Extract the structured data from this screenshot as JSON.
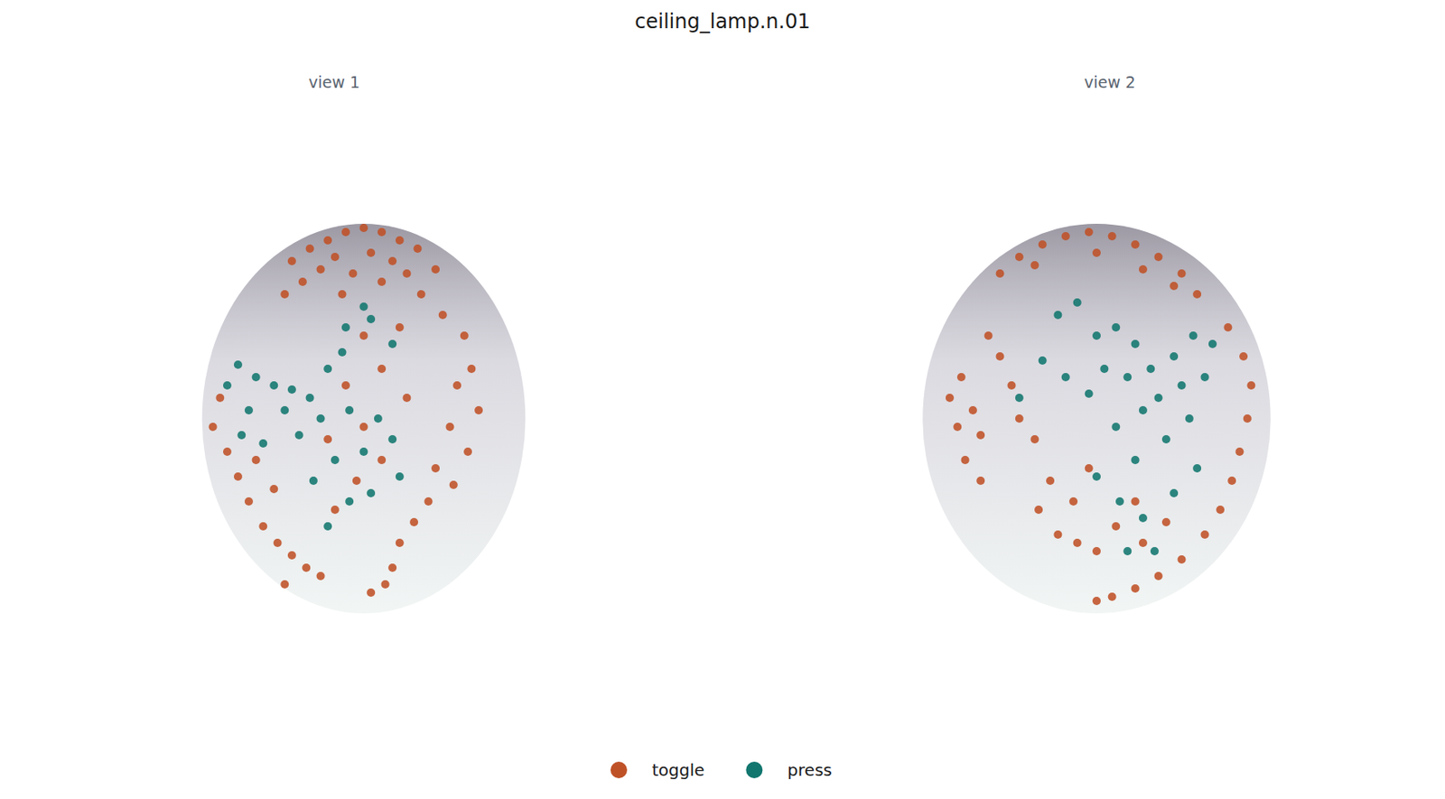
{
  "chart_data": {
    "type": "scatter",
    "title": "ceiling_lamp.n.01",
    "legend": "bottom",
    "tick_labels": false,
    "panels": [
      {
        "title": "view 1",
        "xlim": [
          0,
          100
        ],
        "ylim": [
          0,
          100
        ],
        "series": [
          {
            "name": "toggle",
            "color": "#bf5127",
            "marker": "circle",
            "x": [
              30,
              35,
              40,
              45,
              50,
              55,
              60,
              65,
              42,
              52,
              58,
              38,
              47,
              62,
              33,
              55,
              70,
              28,
              44,
              66,
              72,
              78,
              80,
              76,
              82,
              74,
              79,
              70,
              75,
              68,
              64,
              60,
              58,
              56,
              52,
              50,
              60,
              55,
              45,
              62,
              50,
              40,
              55,
              48,
              42,
              10,
              8,
              12,
              15,
              18,
              22,
              26,
              30,
              34,
              38,
              28,
              20,
              25
            ],
            "y": [
              88,
              91,
              93,
              95,
              96,
              95,
              93,
              91,
              89,
              90,
              88,
              86,
              85,
              85,
              83,
              83,
              86,
              80,
              80,
              80,
              75,
              70,
              62,
              58,
              52,
              48,
              42,
              38,
              34,
              30,
              25,
              20,
              14,
              10,
              8,
              70,
              72,
              62,
              58,
              55,
              48,
              45,
              40,
              35,
              28,
              55,
              48,
              42,
              36,
              30,
              24,
              20,
              17,
              14,
              12,
              10,
              40,
              33
            ]
          },
          {
            "name": "press",
            "color": "#11766e",
            "marker": "circle",
            "x": [
              15,
              20,
              25,
              30,
              12,
              18,
              28,
              35,
              40,
              45,
              50,
              52,
              44,
              58,
              38,
              46,
              54,
              32,
              42,
              50,
              58,
              36,
              46,
              52,
              40,
              16,
              22,
              60
            ],
            "y": [
              63,
              60,
              58,
              57,
              58,
              52,
              52,
              55,
              62,
              72,
              77,
              74,
              66,
              68,
              50,
              52,
              50,
              46,
              40,
              42,
              45,
              35,
              30,
              32,
              24,
              46,
              44,
              36
            ]
          }
        ]
      },
      {
        "title": "view 2",
        "xlim": [
          0,
          100
        ],
        "ylim": [
          0,
          100
        ],
        "series": [
          {
            "name": "toggle",
            "color": "#bf5127",
            "marker": "circle",
            "x": [
              25,
              30,
              36,
              42,
              48,
              54,
              60,
              66,
              72,
              76,
              34,
              50,
              62,
              70,
              84,
              88,
              90,
              89,
              87,
              85,
              82,
              78,
              72,
              66,
              60,
              54,
              50,
              15,
              12,
              18,
              20,
              14,
              25,
              22,
              28,
              16,
              20,
              30,
              34,
              35,
              40,
              45,
              50,
              55,
              62,
              68,
              44,
              38,
              60,
              48
            ],
            "y": [
              85,
              89,
              92,
              94,
              95,
              94,
              92,
              89,
              85,
              80,
              87,
              90,
              86,
              82,
              72,
              65,
              58,
              50,
              42,
              35,
              28,
              22,
              16,
              12,
              9,
              7,
              6,
              60,
              55,
              52,
              46,
              48,
              65,
              70,
              58,
              40,
              35,
              50,
              45,
              28,
              22,
              20,
              18,
              24,
              20,
              25,
              30,
              35,
              30,
              38
            ]
          },
          {
            "name": "press",
            "color": "#11766e",
            "marker": "circle",
            "x": [
              40,
              45,
              50,
              55,
              60,
              52,
              58,
              64,
              70,
              75,
              80,
              66,
              72,
              78,
              62,
              48,
              42,
              36,
              30,
              55,
              68,
              74,
              60,
              50,
              56,
              62,
              70,
              76,
              58,
              65
            ],
            "y": [
              75,
              78,
              70,
              72,
              68,
              62,
              60,
              62,
              65,
              70,
              68,
              55,
              58,
              60,
              52,
              56,
              60,
              64,
              55,
              48,
              45,
              50,
              40,
              36,
              30,
              26,
              32,
              38,
              18,
              18
            ]
          }
        ]
      }
    ]
  }
}
